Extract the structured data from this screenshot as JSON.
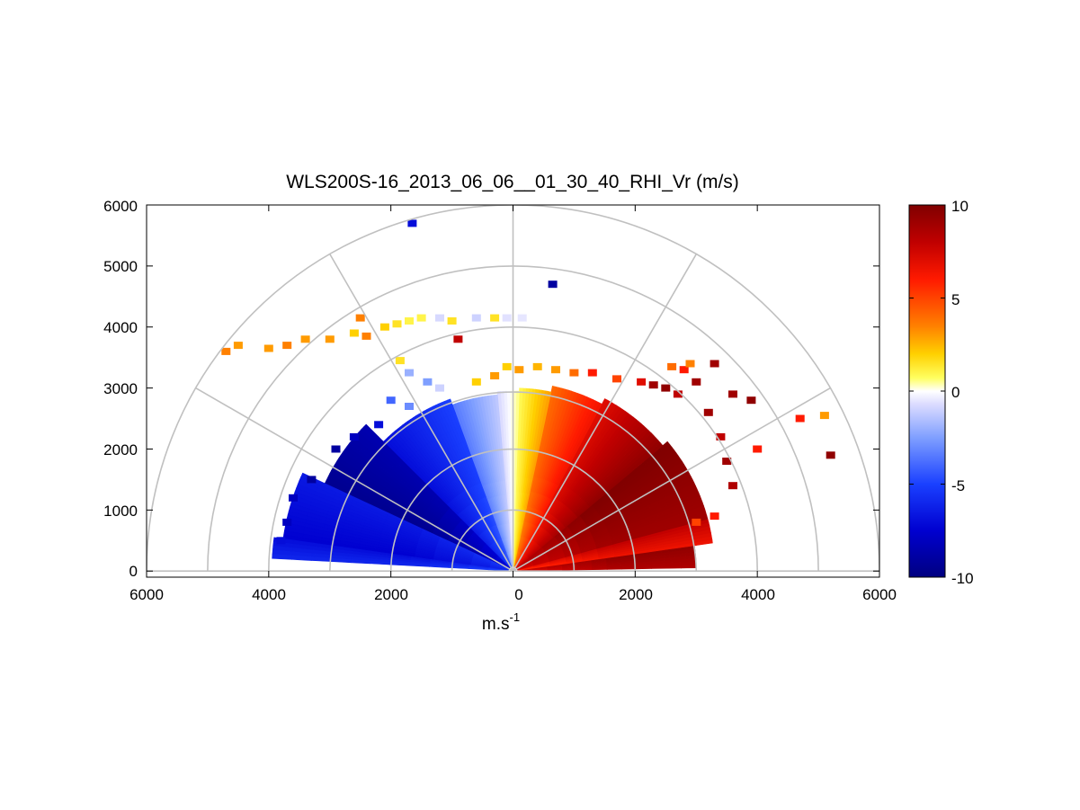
{
  "chart_data": {
    "type": "heatmap",
    "subtype": "polar RHI scan (half-disk)",
    "title": "WLS200S-16_2013_06_06__01_30_40_RHI_Vr (m/s)",
    "xlabel_base": "m.s",
    "xlabel_sup": "-1",
    "x_ticks": [
      "6000",
      "4000",
      "2000",
      "0",
      "2000",
      "4000",
      "6000"
    ],
    "y_ticks": [
      "0",
      "1000",
      "2000",
      "3000",
      "4000",
      "5000",
      "6000"
    ],
    "xlim": [
      -6000,
      6000
    ],
    "ylim": [
      -100,
      6000
    ],
    "range_rings": [
      1000,
      2000,
      3000,
      4000,
      5000,
      6000
    ],
    "spokes_deg": [
      30,
      60,
      90,
      120,
      150
    ],
    "colorbar": {
      "vmin": -10,
      "vmax": 10,
      "tick_values": [
        10,
        5,
        0,
        -5,
        -10
      ],
      "tick_labels": [
        "10",
        "5",
        "0",
        "-5",
        "-10"
      ],
      "stops": [
        {
          "v": -10,
          "c": "#000080"
        },
        {
          "v": -7.5,
          "c": "#0000d0"
        },
        {
          "v": -5,
          "c": "#1a40ff"
        },
        {
          "v": -2.5,
          "c": "#7f9fff"
        },
        {
          "v": -0.7,
          "c": "#dcdcff"
        },
        {
          "v": 0,
          "c": "#ffffff"
        },
        {
          "v": 0.7,
          "c": "#ffff60"
        },
        {
          "v": 2,
          "c": "#ffd000"
        },
        {
          "v": 3.5,
          "c": "#ff8000"
        },
        {
          "v": 6,
          "c": "#ff1a00"
        },
        {
          "v": 8,
          "c": "#c00000"
        },
        {
          "v": 10,
          "c": "#800000"
        }
      ]
    },
    "velocity_field": {
      "description": "Radial velocity sectors: elevation angle ranges (deg) and range extent (m); value varies with elevation",
      "sectors": [
        {
          "elev_start": 1,
          "elev_end": 8,
          "r_min": 80,
          "r_max": 3000,
          "v_start": 8.5,
          "v_end": 9.5
        },
        {
          "elev_start": 8,
          "elev_end": 15,
          "r_min": 80,
          "r_max": 3300,
          "v_start": 6.5,
          "v_end": 8.0
        },
        {
          "elev_start": 15,
          "elev_end": 40,
          "r_min": 80,
          "r_max": 3300,
          "v_start": 9.0,
          "v_end": 10.0
        },
        {
          "elev_start": 40,
          "elev_end": 62,
          "r_min": 80,
          "r_max": 3200,
          "v_start": 9.5,
          "v_end": 7.0
        },
        {
          "elev_start": 62,
          "elev_end": 78,
          "r_min": 80,
          "r_max": 3100,
          "v_start": 6.5,
          "v_end": 4.0
        },
        {
          "elev_start": 78,
          "elev_end": 88,
          "r_min": 80,
          "r_max": 3000,
          "v_start": 3.0,
          "v_end": 0.8
        },
        {
          "elev_start": 88,
          "elev_end": 95,
          "r_min": 80,
          "r_max": 2950,
          "v_start": 0.6,
          "v_end": -0.8
        },
        {
          "elev_start": 95,
          "elev_end": 110,
          "r_min": 80,
          "r_max": 2900,
          "v_start": -1.2,
          "v_end": -3.5
        },
        {
          "elev_start": 110,
          "elev_end": 135,
          "r_min": 80,
          "r_max": 3000,
          "v_start": -5.0,
          "v_end": -7.0
        },
        {
          "elev_start": 135,
          "elev_end": 155,
          "r_min": 80,
          "r_max": 3400,
          "v_start": -8.5,
          "v_end": -9.5
        },
        {
          "elev_start": 155,
          "elev_end": 172,
          "r_min": 80,
          "r_max": 3800,
          "v_start": -6.5,
          "v_end": -7.5
        },
        {
          "elev_start": 172,
          "elev_end": 177,
          "r_min": 80,
          "r_max": 3950,
          "v_start": -7.0,
          "v_end": -6.0
        }
      ],
      "scattered_cells": [
        {
          "x": -4700,
          "y": 3600,
          "v": 3.5
        },
        {
          "x": -4500,
          "y": 3700,
          "v": 3
        },
        {
          "x": -4000,
          "y": 3650,
          "v": 3
        },
        {
          "x": -3700,
          "y": 3700,
          "v": 3.5
        },
        {
          "x": -3400,
          "y": 3800,
          "v": 3
        },
        {
          "x": -3000,
          "y": 3800,
          "v": 3
        },
        {
          "x": -2600,
          "y": 3900,
          "v": 2
        },
        {
          "x": -2400,
          "y": 3850,
          "v": 3.5
        },
        {
          "x": -2100,
          "y": 4000,
          "v": 2
        },
        {
          "x": -1900,
          "y": 4050,
          "v": 1.5
        },
        {
          "x": -1700,
          "y": 4100,
          "v": 1
        },
        {
          "x": -1500,
          "y": 4150,
          "v": 1
        },
        {
          "x": -1200,
          "y": 4150,
          "v": -0.8
        },
        {
          "x": -1000,
          "y": 4100,
          "v": 1.5
        },
        {
          "x": -600,
          "y": 4150,
          "v": -1
        },
        {
          "x": -300,
          "y": 4150,
          "v": 1.5
        },
        {
          "x": -100,
          "y": 4150,
          "v": -0.6
        },
        {
          "x": 150,
          "y": 4150,
          "v": -0.5
        },
        {
          "x": -900,
          "y": 3800,
          "v": 8
        },
        {
          "x": -2500,
          "y": 4150,
          "v": 3.5
        },
        {
          "x": -1650,
          "y": 5700,
          "v": -7
        },
        {
          "x": 650,
          "y": 4700,
          "v": -9
        },
        {
          "x": -1850,
          "y": 3450,
          "v": 1.5
        },
        {
          "x": -1700,
          "y": 3250,
          "v": -2
        },
        {
          "x": -1400,
          "y": 3100,
          "v": -2.5
        },
        {
          "x": -1200,
          "y": 3000,
          "v": -1
        },
        {
          "x": -1700,
          "y": 2700,
          "v": -3
        },
        {
          "x": -2000,
          "y": 2800,
          "v": -4
        },
        {
          "x": -3700,
          "y": 800,
          "v": -8
        },
        {
          "x": -3800,
          "y": 500,
          "v": -7
        },
        {
          "x": -3600,
          "y": 1200,
          "v": -8
        },
        {
          "x": -3300,
          "y": 1500,
          "v": -9
        },
        {
          "x": -2900,
          "y": 2000,
          "v": -9
        },
        {
          "x": -2600,
          "y": 2200,
          "v": -8
        },
        {
          "x": -2200,
          "y": 2400,
          "v": -7
        },
        {
          "x": -600,
          "y": 3100,
          "v": 2
        },
        {
          "x": -300,
          "y": 3200,
          "v": 3
        },
        {
          "x": -100,
          "y": 3350,
          "v": 2
        },
        {
          "x": 100,
          "y": 3300,
          "v": 3
        },
        {
          "x": 400,
          "y": 3350,
          "v": 2.5
        },
        {
          "x": 700,
          "y": 3300,
          "v": 3
        },
        {
          "x": 1000,
          "y": 3250,
          "v": 4
        },
        {
          "x": 1300,
          "y": 3250,
          "v": 6
        },
        {
          "x": 1700,
          "y": 3150,
          "v": 5
        },
        {
          "x": 2100,
          "y": 3100,
          "v": 7
        },
        {
          "x": 2300,
          "y": 3050,
          "v": 9
        },
        {
          "x": 2500,
          "y": 3000,
          "v": 9.5
        },
        {
          "x": 2700,
          "y": 2900,
          "v": 8
        },
        {
          "x": 2800,
          "y": 3300,
          "v": 6
        },
        {
          "x": 3000,
          "y": 3100,
          "v": 9
        },
        {
          "x": 3200,
          "y": 2600,
          "v": 9
        },
        {
          "x": 3400,
          "y": 2200,
          "v": 8
        },
        {
          "x": 3500,
          "y": 1800,
          "v": 9
        },
        {
          "x": 3600,
          "y": 1400,
          "v": 8.5
        },
        {
          "x": 3300,
          "y": 900,
          "v": 6
        },
        {
          "x": 3000,
          "y": 800,
          "v": 5
        },
        {
          "x": 3600,
          "y": 2900,
          "v": 9
        },
        {
          "x": 3900,
          "y": 2800,
          "v": 9.5
        },
        {
          "x": 4000,
          "y": 2000,
          "v": 6
        },
        {
          "x": 2900,
          "y": 3400,
          "v": 3.5
        },
        {
          "x": 5100,
          "y": 2550,
          "v": 3
        },
        {
          "x": 5200,
          "y": 1900,
          "v": 9.5
        },
        {
          "x": 4700,
          "y": 2500,
          "v": 6
        },
        {
          "x": 3300,
          "y": 3400,
          "v": 9
        },
        {
          "x": 2600,
          "y": 3350,
          "v": 4
        }
      ]
    }
  }
}
